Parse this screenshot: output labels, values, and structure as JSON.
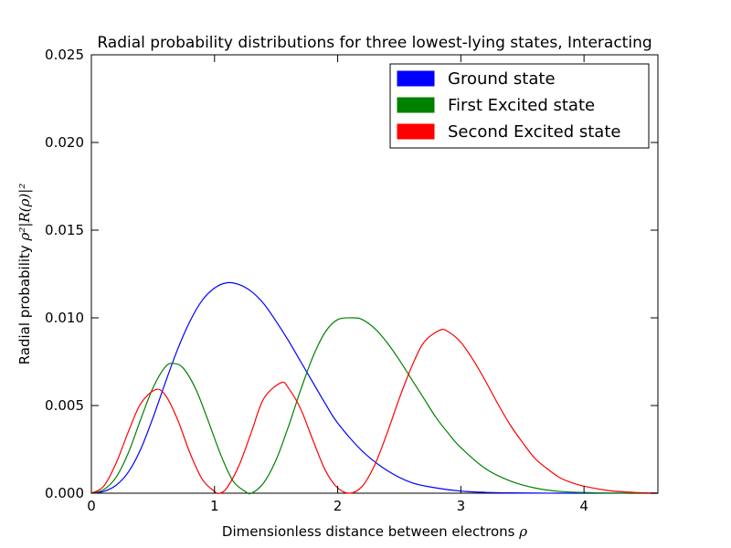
{
  "chart_data": {
    "type": "line",
    "title": "Radial probability distributions for three lowest-lying states, Interacting",
    "xlabel": {
      "text": "Dimensionless distance between electrons ",
      "symbol": "ρ"
    },
    "ylabel": {
      "text": "Radial probability ",
      "symbol": "ρ²|R(ρ)|²"
    },
    "xlim": [
      0,
      4.6
    ],
    "ylim": [
      0,
      0.025
    ],
    "xticks": [
      0,
      1,
      2,
      3,
      4
    ],
    "yticks": [
      0.0,
      0.005,
      0.01,
      0.015,
      0.02,
      0.025
    ],
    "xtick_labels": [
      "0",
      "1",
      "2",
      "3",
      "4"
    ],
    "ytick_labels": [
      "0.000",
      "0.005",
      "0.010",
      "0.015",
      "0.020",
      "0.025"
    ],
    "grid": false,
    "legend_position": "top-right",
    "series": [
      {
        "name": "Ground state",
        "color": "#0000ff",
        "x": [
          0,
          0.1,
          0.2,
          0.3,
          0.4,
          0.5,
          0.6,
          0.7,
          0.8,
          0.9,
          1.0,
          1.1,
          1.2,
          1.3,
          1.4,
          1.5,
          1.6,
          1.7,
          1.8,
          1.9,
          2.0,
          2.2,
          2.4,
          2.6,
          2.8,
          3.0,
          3.2,
          3.4,
          3.6,
          3.8,
          4.0,
          4.2,
          4.4,
          4.6
        ],
        "y": [
          0,
          0.0001,
          0.00045,
          0.0012,
          0.0025,
          0.0043,
          0.0063,
          0.0082,
          0.0098,
          0.011,
          0.0117,
          0.012,
          0.0119,
          0.0115,
          0.0108,
          0.0098,
          0.0087,
          0.0075,
          0.0063,
          0.0051,
          0.004,
          0.0024,
          0.0013,
          0.0006,
          0.0003,
          0.00012,
          5e-05,
          2e-05,
          1e-05,
          0,
          0,
          0,
          0,
          0
        ]
      },
      {
        "name": "First Excited state",
        "color": "#008000",
        "x": [
          0,
          0.1,
          0.2,
          0.3,
          0.4,
          0.5,
          0.6,
          0.67,
          0.75,
          0.85,
          0.95,
          1.05,
          1.15,
          1.25,
          1.3,
          1.4,
          1.5,
          1.6,
          1.7,
          1.8,
          1.9,
          2.0,
          2.13,
          2.2,
          2.3,
          2.4,
          2.5,
          2.6,
          2.7,
          2.8,
          2.9,
          3.0,
          3.2,
          3.4,
          3.6,
          3.8,
          4.0,
          4.2,
          4.4,
          4.6
        ],
        "y": [
          0,
          0.0002,
          0.0009,
          0.0023,
          0.0042,
          0.006,
          0.0072,
          0.0074,
          0.0071,
          0.0059,
          0.0041,
          0.0022,
          0.0007,
          0.0001,
          0,
          0.0006,
          0.0019,
          0.0038,
          0.0059,
          0.0078,
          0.0092,
          0.0099,
          0.01,
          0.0099,
          0.0094,
          0.0086,
          0.0076,
          0.0065,
          0.0054,
          0.0043,
          0.0034,
          0.0026,
          0.0014,
          0.0007,
          0.0003,
          0.0001,
          4e-05,
          1e-05,
          0,
          0
        ]
      },
      {
        "name": "Second Excited state",
        "color": "#ff0000",
        "x": [
          0,
          0.1,
          0.2,
          0.3,
          0.4,
          0.52,
          0.6,
          0.7,
          0.8,
          0.9,
          1.0,
          1.04,
          1.1,
          1.2,
          1.3,
          1.4,
          1.54,
          1.6,
          1.7,
          1.8,
          1.9,
          2.0,
          2.1,
          2.2,
          2.3,
          2.4,
          2.5,
          2.6,
          2.7,
          2.83,
          2.9,
          3.0,
          3.1,
          3.2,
          3.3,
          3.4,
          3.5,
          3.6,
          3.7,
          3.8,
          3.9,
          4.0,
          4.2,
          4.4,
          4.6
        ],
        "y": [
          0,
          0.0004,
          0.0017,
          0.0035,
          0.0051,
          0.0059,
          0.0056,
          0.0042,
          0.0023,
          0.0008,
          0.0001,
          0,
          0.0003,
          0.0016,
          0.0035,
          0.0054,
          0.0063,
          0.006,
          0.0048,
          0.003,
          0.0013,
          0.0003,
          0,
          0.0004,
          0.0016,
          0.0034,
          0.0054,
          0.0072,
          0.0086,
          0.0093,
          0.0092,
          0.0086,
          0.0076,
          0.0064,
          0.0051,
          0.0039,
          0.0029,
          0.002,
          0.0014,
          0.0009,
          0.0006,
          0.0004,
          0.00015,
          5e-05,
          1e-05
        ]
      }
    ]
  }
}
